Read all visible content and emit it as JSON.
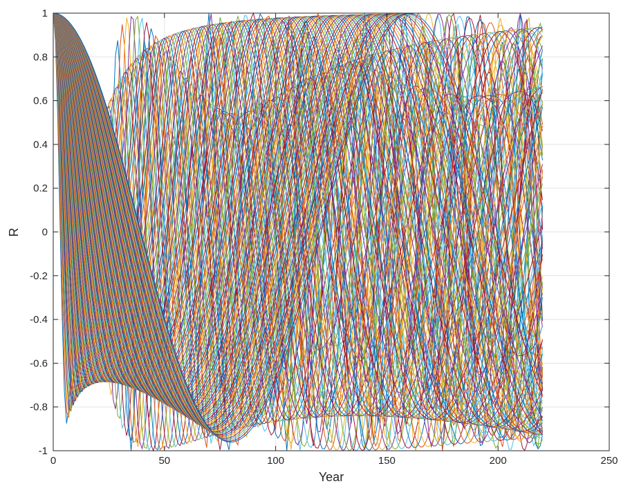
{
  "chart_data": {
    "type": "line",
    "title": "",
    "xlabel": "Year",
    "ylabel": "R",
    "xlim": [
      0,
      250
    ],
    "ylim": [
      -1,
      1
    ],
    "x_ticks": [
      0,
      50,
      100,
      150,
      200,
      250
    ],
    "y_ticks": [
      -1,
      -0.8,
      -0.6,
      -0.4,
      -0.2,
      0,
      0.2,
      0.4,
      0.6,
      0.8,
      1
    ],
    "x_tick_labels": [
      "0",
      "50",
      "100",
      "150",
      "200",
      "250"
    ],
    "y_tick_labels": [
      "-1",
      "-0.8",
      "-0.6",
      "-0.4",
      "-0.2",
      "0",
      "0.2",
      "0.4",
      "0.6",
      "0.8",
      "1"
    ],
    "grid": true,
    "legend": "none",
    "colors": [
      "#0072BD",
      "#D95319",
      "#EDB120",
      "#7E2F8E",
      "#77AC30",
      "#4DBEEE",
      "#A2142F"
    ],
    "series_description_points": {
      "x_range": [
        0,
        220
      ],
      "series_count": 120,
      "reference_series": {
        "slow_cosine_period_years": 160,
        "example_low_frequency": [
          {
            "x": 0,
            "y": 1
          },
          {
            "x": 40,
            "y": -0.9
          },
          {
            "x": 80,
            "y": -0.93
          },
          {
            "x": 110,
            "y": -0.33
          },
          {
            "x": 165,
            "y": 0.87
          },
          {
            "x": 220,
            "y": -0.55
          }
        ]
      }
    }
  }
}
